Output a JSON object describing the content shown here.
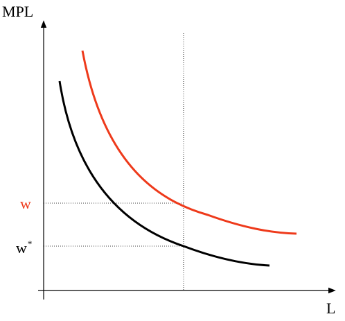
{
  "axes": {
    "y_label": "MPL",
    "x_label": "L"
  },
  "levels": {
    "w": {
      "text": "w",
      "color": "#ee3a1b"
    },
    "w_star": {
      "base": "w",
      "superscript": "*",
      "color": "#000000"
    }
  },
  "curves": {
    "shifted_mpl": {
      "color": "#ee3a1b"
    },
    "original_mpl": {
      "color": "#000000"
    }
  },
  "guides": {
    "style": "dotted"
  }
}
